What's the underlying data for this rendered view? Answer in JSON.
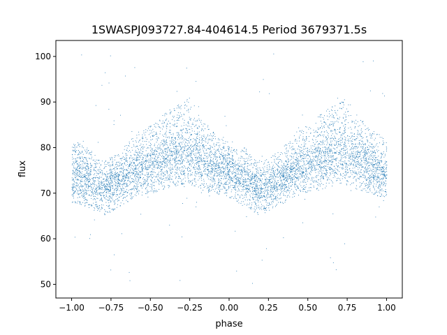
{
  "chart_data": {
    "type": "scatter",
    "title": "1SWASPJ093727.84-404614.5 Period 3679371.5s",
    "xlabel": "phase",
    "ylabel": "flux",
    "xlim": [
      -1.1,
      1.1
    ],
    "ylim": [
      47,
      103.5
    ],
    "xticks": [
      -1.0,
      -0.75,
      -0.5,
      -0.25,
      0.0,
      0.25,
      0.5,
      0.75,
      1.0
    ],
    "xtick_labels": [
      "−1.00",
      "−0.75",
      "−0.50",
      "−0.25",
      "0.00",
      "0.25",
      "0.50",
      "0.75",
      "1.00"
    ],
    "yticks": [
      50,
      60,
      70,
      80,
      90,
      100
    ],
    "ytick_labels": [
      "50",
      "60",
      "70",
      "80",
      "90",
      "100"
    ],
    "grid": false,
    "legend": "none",
    "marker_color": "#1f77b4",
    "series": [
      {
        "x": [
          -1.0,
          -0.9,
          -0.8,
          -0.7,
          -0.6,
          -0.5,
          -0.4,
          -0.3,
          -0.25,
          -0.2,
          -0.1,
          0.0,
          0.1,
          0.2,
          0.3,
          0.4,
          0.5,
          0.6,
          0.7,
          0.75,
          0.8,
          0.9,
          1.0
        ],
        "upper_envelope": [
          82,
          80,
          77,
          79,
          83,
          85,
          88,
          90,
          91,
          88,
          84,
          82,
          80,
          77,
          79,
          83,
          85,
          88,
          90,
          91,
          88,
          84,
          82
        ],
        "center": [
          74,
          73,
          71,
          73,
          75,
          76,
          78,
          79,
          79,
          78,
          76,
          75,
          73,
          71,
          73,
          75,
          76,
          78,
          79,
          79,
          78,
          76,
          74
        ],
        "lower_envelope": [
          68,
          67,
          65,
          67,
          69,
          70,
          71,
          72,
          72,
          71,
          70,
          69,
          67,
          65,
          67,
          69,
          70,
          71,
          72,
          72,
          71,
          70,
          68
        ]
      }
    ],
    "outlier_range": [
      49.5,
      101
    ]
  }
}
